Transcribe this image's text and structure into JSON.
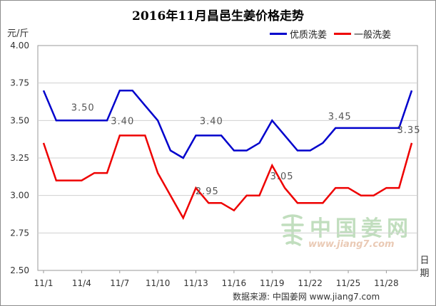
{
  "chart_data": {
    "type": "line",
    "title": "2016年11月昌邑生姜价格走势",
    "ylabel": "元/斤",
    "xlabel": "日期",
    "ylim": [
      2.5,
      4.0
    ],
    "yticks": [
      "2.50",
      "2.75",
      "3.00",
      "3.25",
      "3.50",
      "3.75",
      "4.00"
    ],
    "ytick_values": [
      2.5,
      2.75,
      3.0,
      3.25,
      3.5,
      3.75,
      4.0
    ],
    "x": [
      1,
      2,
      3,
      4,
      5,
      6,
      7,
      8,
      9,
      10,
      11,
      12,
      13,
      14,
      15,
      16,
      17,
      18,
      19,
      20,
      21,
      22,
      23,
      24,
      25,
      26,
      27,
      28,
      29,
      30
    ],
    "xticks": [
      "11/1",
      "11/4",
      "11/7",
      "11/10",
      "11/13",
      "11/16",
      "11/19",
      "11/22",
      "11/25",
      "11/28"
    ],
    "xtick_values": [
      1,
      4,
      7,
      10,
      13,
      16,
      19,
      22,
      25,
      28
    ],
    "grid": true,
    "legend_position": "top-right",
    "series": [
      {
        "name": "优质洗姜",
        "color": "#0000cc",
        "values": [
          3.7,
          3.5,
          3.5,
          3.5,
          3.5,
          3.5,
          3.7,
          3.7,
          3.6,
          3.5,
          3.3,
          3.25,
          3.4,
          3.4,
          3.4,
          3.3,
          3.3,
          3.35,
          3.5,
          3.4,
          3.3,
          3.3,
          3.35,
          3.45,
          3.45,
          3.45,
          3.45,
          3.45,
          3.45,
          3.7
        ]
      },
      {
        "name": "一般洗姜",
        "color": "#ee0000",
        "values": [
          3.35,
          3.1,
          3.1,
          3.1,
          3.15,
          3.15,
          3.4,
          3.4,
          3.4,
          3.15,
          3.0,
          2.85,
          3.05,
          2.95,
          2.95,
          2.9,
          3.0,
          3.0,
          3.2,
          3.05,
          2.95,
          2.95,
          2.95,
          3.05,
          3.05,
          3.0,
          3.0,
          3.05,
          3.05,
          3.35
        ]
      }
    ],
    "annotations": [
      {
        "text": "3.50",
        "x": 5,
        "y": 3.5
      },
      {
        "text": "3.40",
        "x": 7,
        "y": 3.4
      },
      {
        "text": "3.40",
        "x": 14,
        "y": 3.4
      },
      {
        "text": "3.45",
        "x": 24,
        "y": 3.45
      },
      {
        "text": "3.35",
        "x": 30,
        "y": 3.35
      },
      {
        "text": "2.95",
        "x": 14,
        "y": 2.95
      },
      {
        "text": "3.05",
        "x": 20,
        "y": 3.05
      }
    ]
  },
  "source_text": "数据来源: 中国姜网 www.jiang7.com",
  "watermark": {
    "text": "中国姜网",
    "url": "www.jiang7.com"
  }
}
